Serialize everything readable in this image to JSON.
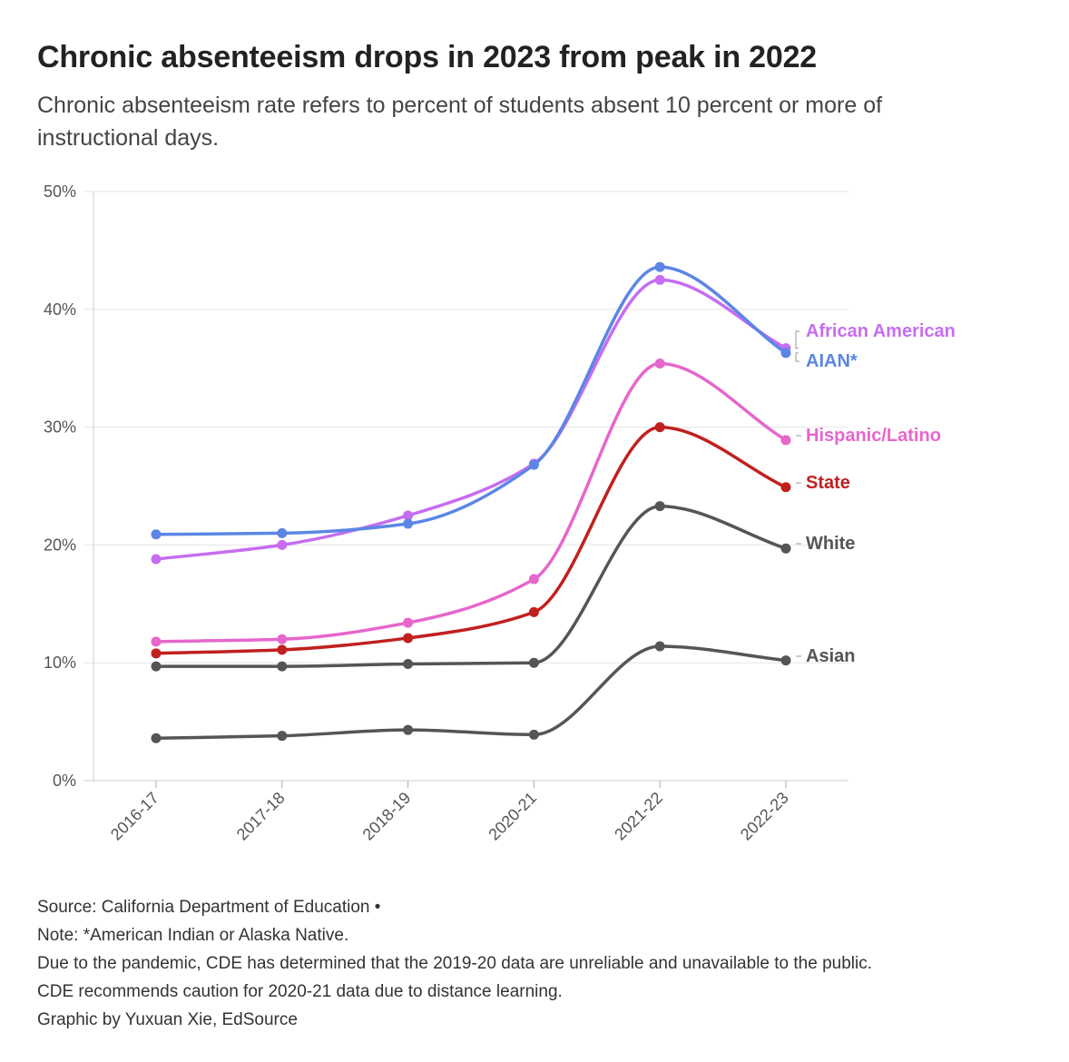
{
  "title": "Chronic absenteeism drops in 2023 from peak in 2022",
  "subtitle": "Chronic absenteeism rate refers to percent of students absent 10 percent or more of instructional days.",
  "footer": {
    "source": "Source: California Department of Education •",
    "note": "Note: *American Indian or Alaska Native.",
    "pandemic": "Due to the pandemic, CDE has determined that the 2019-20 data are unreliable and unavailable to the public.",
    "caution": "CDE recommends caution for 2020-21 data due to distance learning.",
    "credit": "Graphic by Yuxuan Xie, EdSource"
  },
  "chart_data": {
    "type": "line",
    "title": "Chronic absenteeism drops in 2023 from peak in 2022",
    "xlabel": "",
    "ylabel": "",
    "categories": [
      "2016-17",
      "2017-18",
      "2018-19",
      "2020-21",
      "2021-22",
      "2022-23"
    ],
    "ylim": [
      0,
      50
    ],
    "yticks": [
      0,
      10,
      20,
      30,
      40,
      50
    ],
    "ytick_labels": [
      "0%",
      "10%",
      "20%",
      "30%",
      "40%",
      "50%"
    ],
    "grid": "horizontal",
    "series": [
      {
        "name": "AIAN*",
        "color": "#5b86e5",
        "values": [
          20.9,
          21.0,
          21.8,
          26.8,
          43.6,
          36.3
        ]
      },
      {
        "name": "African American",
        "color": "#c66df0",
        "values": [
          18.8,
          20.0,
          22.5,
          26.9,
          42.5,
          36.7
        ]
      },
      {
        "name": "Hispanic/Latino",
        "color": "#e666cc",
        "values": [
          11.8,
          12.0,
          13.4,
          17.1,
          35.4,
          28.9
        ]
      },
      {
        "name": "State",
        "color": "#c0201f",
        "values": [
          10.8,
          11.1,
          12.1,
          14.3,
          30.0,
          24.9
        ]
      },
      {
        "name": "White",
        "color": "#555555",
        "values": [
          9.7,
          9.7,
          9.9,
          10.0,
          23.3,
          19.7
        ]
      },
      {
        "name": "Asian",
        "color": "#555555",
        "values": [
          3.6,
          3.8,
          4.3,
          3.9,
          11.4,
          10.2
        ]
      }
    ]
  }
}
